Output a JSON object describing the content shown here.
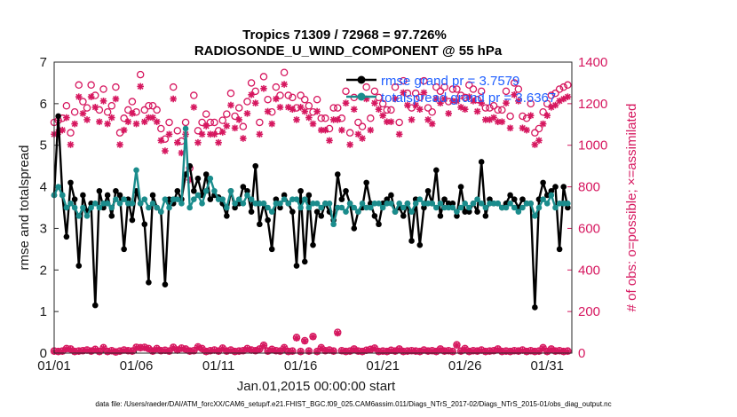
{
  "chart_data": {
    "type": "line",
    "title_line1": "Tropics 71309 / 72968 = 97.726%",
    "title_line2": "RADIOSONDE_U_WIND_COMPONENT @ 55 hPa",
    "xlabel": "Jan.01,2015 00:00:00 start",
    "ylabel_left": "rmse and totalspread",
    "ylabel_right": "# of obs: o=possible; ×=assimilated",
    "xlim": [
      0,
      31.5
    ],
    "ylim_left": [
      0,
      7
    ],
    "ylim_right": [
      0,
      1400
    ],
    "x_ticks": [
      {
        "value": 0,
        "label": "01/01"
      },
      {
        "value": 5,
        "label": "01/06"
      },
      {
        "value": 10,
        "label": "01/11"
      },
      {
        "value": 15,
        "label": "01/16"
      },
      {
        "value": 20,
        "label": "01/21"
      },
      {
        "value": 25,
        "label": "01/26"
      },
      {
        "value": 30,
        "label": "01/31"
      }
    ],
    "y_ticks_left": [
      "0",
      "1",
      "2",
      "3",
      "4",
      "5",
      "6",
      "7"
    ],
    "y_ticks_right": [
      "0",
      "200",
      "400",
      "600",
      "800",
      "1000",
      "1200",
      "1400"
    ],
    "legend": [
      {
        "name": "rmse grand pr = 3.7579",
        "color": "#000000"
      },
      {
        "name": "totalspread grand pr = 3.6367",
        "color": "#1a8c8c"
      }
    ],
    "colors": {
      "rmse": "#000000",
      "spread": "#1a8c8c",
      "obs": "#d6175f",
      "legend_text": "#1f5fff"
    },
    "times_x": [
      0.0,
      0.25,
      0.5,
      0.75,
      1.0,
      1.25,
      1.5,
      1.75,
      2.0,
      2.25,
      2.5,
      2.75,
      3.0,
      3.25,
      3.5,
      3.75,
      4.0,
      4.25,
      4.5,
      4.75,
      5.0,
      5.25,
      5.5,
      5.75,
      6.0,
      6.25,
      6.5,
      6.75,
      7.0,
      7.25,
      7.5,
      7.75,
      8.0,
      8.25,
      8.5,
      8.75,
      9.0,
      9.25,
      9.5,
      9.75,
      10.0,
      10.25,
      10.5,
      10.75,
      11.0,
      11.25,
      11.5,
      11.75,
      12.0,
      12.25,
      12.5,
      12.75,
      13.0,
      13.25,
      13.5,
      13.75,
      14.0,
      14.25,
      14.5,
      14.75,
      15.0,
      15.25,
      15.5,
      15.75,
      16.0,
      16.25,
      16.5,
      16.75,
      17.0,
      17.25,
      17.5,
      17.75,
      18.0,
      18.25,
      18.5,
      18.75,
      19.0,
      19.25,
      19.5,
      19.75,
      20.0,
      20.25,
      20.5,
      20.75,
      21.0,
      21.25,
      21.5,
      21.75,
      22.0,
      22.25,
      22.5,
      22.75,
      23.0,
      23.25,
      23.5,
      23.75,
      24.0,
      24.25,
      24.5,
      24.75,
      25.0,
      25.25,
      25.5,
      25.75,
      26.0,
      26.25,
      26.5,
      26.75,
      27.0,
      27.25,
      27.5,
      27.75,
      28.0,
      28.25,
      28.5,
      28.75,
      29.0,
      29.25,
      29.5,
      29.75,
      30.0,
      30.25,
      30.5,
      30.75,
      31.0,
      31.25
    ],
    "rmse": [
      3.8,
      5.7,
      3.8,
      2.8,
      4.1,
      3.7,
      2.1,
      3.8,
      3.4,
      3.6,
      1.15,
      3.9,
      3.5,
      3.8,
      3.3,
      3.9,
      3.8,
      2.5,
      3.7,
      3.2,
      3.9,
      3.6,
      3.1,
      1.7,
      3.8,
      3.5,
      3.4,
      1.65,
      3.7,
      3.6,
      3.9,
      3.7,
      4.3,
      4.5,
      3.9,
      4.2,
      3.8,
      4.3,
      3.7,
      3.8,
      3.75,
      3.6,
      3.3,
      3.9,
      3.5,
      3.6,
      4.0,
      3.9,
      3.4,
      4.5,
      3.1,
      3.6,
      3.2,
      2.5,
      3.7,
      3.5,
      3.8,
      3.6,
      3.4,
      2.1,
      3.9,
      2.2,
      3.8,
      2.6,
      3.4,
      3.3,
      3.6,
      3.4,
      3.2,
      4.3,
      3.7,
      3.9,
      3.6,
      3.0,
      3.4,
      3.5,
      4.1,
      3.6,
      3.3,
      3.1,
      3.6,
      3.7,
      3.8,
      3.4,
      3.5,
      3.3,
      3.6,
      2.7,
      3.7,
      2.6,
      3.5,
      3.9,
      3.6,
      4.4,
      3.3,
      3.7,
      3.6,
      3.6,
      3.3,
      4.0,
      3.4,
      3.4,
      3.6,
      3.4,
      4.6,
      3.3,
      3.7,
      3.6,
      3.6,
      3.5,
      3.6,
      3.8,
      3.7,
      3.5,
      3.7,
      3.6,
      3.6,
      1.1,
      3.7,
      4.1,
      3.8,
      3.9,
      4.0,
      2.5,
      4.0,
      3.5
    ],
    "spread": [
      3.8,
      4.0,
      3.8,
      3.5,
      3.6,
      3.5,
      3.3,
      3.5,
      3.3,
      3.5,
      3.6,
      3.5,
      3.6,
      3.6,
      3.5,
      3.7,
      3.6,
      3.7,
      3.6,
      3.6,
      4.4,
      3.6,
      3.7,
      3.5,
      3.6,
      3.5,
      3.4,
      3.7,
      3.5,
      3.7,
      3.7,
      3.6,
      5.4,
      3.5,
      3.7,
      3.8,
      3.6,
      3.9,
      4.2,
      3.9,
      3.7,
      3.7,
      3.5,
      3.9,
      3.6,
      3.7,
      3.6,
      3.8,
      3.7,
      3.6,
      3.6,
      3.6,
      3.5,
      3.4,
      3.6,
      3.6,
      3.7,
      3.6,
      3.7,
      3.7,
      3.5,
      3.7,
      3.5,
      3.6,
      3.6,
      3.5,
      3.6,
      3.6,
      3.1,
      3.5,
      3.5,
      3.4,
      3.6,
      3.5,
      3.4,
      3.6,
      3.5,
      3.5,
      3.6,
      3.6,
      3.5,
      3.6,
      3.6,
      3.4,
      3.6,
      3.5,
      3.6,
      3.4,
      3.6,
      3.7,
      3.6,
      3.6,
      3.6,
      3.5,
      3.6,
      3.5,
      3.5,
      3.5,
      3.4,
      3.5,
      3.6,
      3.5,
      3.6,
      3.7,
      3.6,
      3.5,
      3.6,
      3.6,
      3.6,
      3.5,
      3.5,
      3.6,
      3.5,
      3.4,
      3.5,
      3.6,
      3.6,
      3.3,
      3.5,
      3.7,
      3.6,
      3.8,
      3.5,
      3.6,
      3.6,
      3.6
    ],
    "obs_possible": [
      1080,
      1090,
      1100,
      1160,
      1030,
      1130,
      1260,
      1180,
      1150,
      1260,
      1210,
      1140,
      1240,
      1130,
      1160,
      1250,
      1030,
      1100,
      1140,
      1180,
      1130,
      1310,
      1140,
      1160,
      1160,
      1140,
      1050,
      1000,
      1080,
      1250,
      1040,
      990,
      1080,
      860,
      1210,
      1040,
      1080,
      1120,
      1080,
      1080,
      1040,
      1090,
      1120,
      1220,
      1110,
      1150,
      1060,
      1180,
      1270,
      1230,
      1080,
      1300,
      1190,
      1130,
      1250,
      1210,
      1320,
      1210,
      1200,
      1150,
      1210,
      1190,
      1160,
      1130,
      1190,
      1100,
      1100,
      1050,
      1150,
      1150,
      1100,
      1230,
      1030,
      1200,
      1080,
      1060,
      1250,
      1100,
      1230,
      1200,
      1170,
      1140,
      1140,
      1250,
      1080,
      1280,
      1220,
      1150,
      1220,
      1200,
      1280,
      1150,
      1130,
      1250,
      1230,
      1250,
      1180,
      1240,
      1240,
      1210,
      1200,
      1260,
      1240,
      1190,
      1230,
      1150,
      1150,
      1160,
      1140,
      1140,
      1230,
      1110,
      1270,
      1240,
      1110,
      1100,
      1170,
      1030,
      1050,
      1130,
      1170,
      1210,
      1220,
      1240,
      1250,
      1260
    ],
    "obs_assimilated": [
      1070,
      1080,
      1090,
      1150,
      1020,
      1120,
      1250,
      1170,
      1140,
      1250,
      1200,
      1130,
      1230,
      1120,
      1150,
      1240,
      1020,
      1090,
      1130,
      1170,
      1120,
      1300,
      1130,
      1150,
      1150,
      1130,
      1040,
      990,
      1070,
      1240,
      1030,
      980,
      1070,
      850,
      1200,
      1030,
      1070,
      1110,
      1070,
      1070,
      1030,
      1080,
      1110,
      1210,
      1100,
      1140,
      1050,
      1170,
      1260,
      1220,
      1070,
      1290,
      1180,
      1120,
      1240,
      1200,
      1310,
      1200,
      1190,
      1140,
      1200,
      1180,
      1150,
      1120,
      1180,
      1090,
      1090,
      1040,
      1140,
      1140,
      1090,
      1220,
      1020,
      1190,
      1070,
      1050,
      1240,
      1090,
      1220,
      1190,
      1160,
      1130,
      1130,
      1240,
      1070,
      1270,
      1210,
      1140,
      1210,
      1190,
      1270,
      1140,
      1120,
      1240,
      1220,
      1240,
      1170,
      1230,
      1230,
      1200,
      1190,
      1250,
      1230,
      1180,
      1220,
      1140,
      1140,
      1150,
      1130,
      1130,
      1220,
      1100,
      1260,
      1230,
      1100,
      1090,
      1160,
      1020,
      1040,
      1120,
      1160,
      1200,
      1210,
      1230,
      1240,
      1250
    ],
    "obs_low_x": [
      0.0,
      0.25,
      0.5,
      0.75,
      1.0,
      1.25,
      1.5,
      1.75,
      2.0,
      2.25,
      2.5,
      2.75,
      3.0,
      3.25,
      3.5,
      3.75,
      4.0,
      4.25,
      4.5,
      4.75,
      5.0,
      5.25,
      5.5,
      5.75,
      6.0,
      6.25,
      6.5,
      6.75,
      7.0,
      7.25,
      7.5,
      7.75,
      8.0,
      8.25,
      8.5,
      8.75,
      9.0,
      9.25,
      9.5,
      9.75,
      10.0,
      10.25,
      10.5,
      10.75,
      11.0,
      11.25,
      11.5,
      11.75,
      12.0,
      12.25,
      12.5,
      12.75,
      13.0,
      13.25,
      13.5,
      13.75,
      14.0,
      14.25,
      14.5,
      14.75,
      15.0,
      15.25,
      15.5,
      15.75,
      16.0,
      16.25,
      16.5,
      16.75,
      17.0,
      17.25,
      17.5,
      17.75,
      18.0,
      18.25,
      18.5,
      18.75,
      19.0,
      19.25,
      19.5,
      19.75,
      20.0,
      20.25,
      20.5,
      20.75,
      21.0,
      21.25,
      21.5,
      21.75,
      22.0,
      22.25,
      22.5,
      22.75,
      23.0,
      23.25,
      23.5,
      23.75,
      24.0,
      24.25,
      24.5,
      24.75,
      25.0,
      25.25,
      25.5,
      25.75,
      26.0,
      26.25,
      26.5,
      26.75,
      27.0,
      27.25,
      27.5,
      27.75,
      28.0,
      28.25,
      28.5,
      28.75,
      29.0,
      29.25,
      29.5,
      29.75,
      30.0,
      30.25,
      30.5,
      30.75,
      31.0,
      31.25
    ],
    "obs_low_possible": [
      10,
      8,
      10,
      22,
      20,
      8,
      10,
      12,
      15,
      10,
      18,
      8,
      26,
      8,
      12,
      6,
      10,
      15,
      12,
      10,
      28,
      26,
      28,
      22,
      10,
      22,
      12,
      14,
      10,
      28,
      15,
      24,
      20,
      10,
      12,
      30,
      22,
      8,
      12,
      15,
      10,
      24,
      10,
      15,
      8,
      10,
      12,
      22,
      15,
      12,
      20,
      38,
      10,
      18,
      12,
      10,
      26,
      8,
      10,
      75,
      8,
      60,
      10,
      80,
      8,
      26,
      12,
      15,
      10,
      100,
      12,
      8,
      10,
      20,
      10,
      8,
      14,
      18,
      24,
      8,
      10,
      8,
      14,
      10,
      20,
      8,
      10,
      12,
      10,
      8,
      15,
      10,
      12,
      8,
      20,
      10,
      12,
      8,
      40,
      10,
      22,
      8,
      12,
      10,
      15,
      8,
      10,
      12,
      20,
      8,
      10,
      8,
      12,
      10,
      15,
      8,
      12,
      8,
      10,
      26,
      8,
      20,
      10,
      12,
      8,
      10
    ],
    "obs_low_assimilated": [
      8,
      6,
      8,
      20,
      18,
      6,
      8,
      10,
      13,
      8,
      16,
      6,
      24,
      6,
      10,
      4,
      8,
      13,
      10,
      8,
      26,
      24,
      26,
      20,
      8,
      20,
      10,
      12,
      8,
      26,
      13,
      22,
      18,
      8,
      10,
      28,
      20,
      6,
      10,
      13,
      8,
      22,
      8,
      13,
      6,
      8,
      10,
      20,
      13,
      10,
      18,
      36,
      8,
      16,
      10,
      8,
      24,
      6,
      8,
      72,
      6,
      58,
      8,
      78,
      6,
      24,
      10,
      13,
      8,
      96,
      10,
      6,
      8,
      18,
      8,
      6,
      12,
      16,
      22,
      6,
      8,
      6,
      12,
      8,
      18,
      6,
      8,
      10,
      8,
      6,
      13,
      8,
      10,
      6,
      18,
      8,
      10,
      6,
      38,
      8,
      20,
      6,
      10,
      8,
      13,
      6,
      8,
      10,
      18,
      6,
      8,
      6,
      10,
      8,
      13,
      6,
      10,
      6,
      8,
      24,
      6,
      18,
      8,
      10,
      6,
      8
    ]
  },
  "footer": {
    "data_file": "data file: /Users/raeder/DAI/ATM_forcXX/CAM6_setup/f.e21.FHIST_BGC.f09_025.CAM6assim.011/Diags_NTrS_2017-02/Diags_NTrS_2015-01/obs_diag_output.nc"
  }
}
